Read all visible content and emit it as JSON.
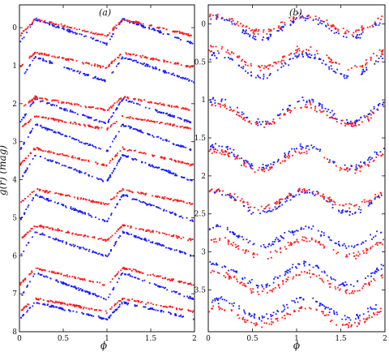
{
  "chart_data": [
    {
      "type": "scatter",
      "panel_label": "(a)",
      "xlabel": "ϕ",
      "ylabel": "g(r) (mag)",
      "xlim": [
        0,
        2
      ],
      "ylim": [
        8,
        -0.6
      ],
      "y_inverted": true,
      "x_ticks": [
        "0",
        "0.5",
        "1",
        "1.5",
        "2"
      ],
      "y_ticks": [
        "0",
        "1",
        "2",
        "3",
        "4",
        "5",
        "6",
        "7",
        "8"
      ],
      "colors": {
        "g": "#1a1aff",
        "r": "#ff1a1a"
      },
      "curve_shape": "sawtooth",
      "stars": [
        {
          "g_mean": 0.1,
          "g_amp": 0.65,
          "r_mean": 0.0,
          "r_amp": 0.45
        },
        {
          "g_mean": 1.1,
          "g_amp": 0.65,
          "r_mean": 0.85,
          "r_amp": 0.4
        },
        {
          "g_mean": 2.2,
          "g_amp": 0.65,
          "r_mean": 2.0,
          "r_amp": 0.35
        },
        {
          "g_mean": 2.9,
          "g_amp": 0.7,
          "r_mean": 2.5,
          "r_amp": 0.35
        },
        {
          "g_mean": 3.7,
          "g_amp": 0.7,
          "r_mean": 3.4,
          "r_amp": 0.45
        },
        {
          "g_mean": 4.75,
          "g_amp": 0.7,
          "r_mean": 4.45,
          "r_amp": 0.4
        },
        {
          "g_mean": 5.7,
          "g_amp": 0.65,
          "r_mean": 5.4,
          "r_amp": 0.4
        },
        {
          "g_mean": 6.8,
          "g_amp": 0.7,
          "r_mean": 6.55,
          "r_amp": 0.45
        },
        {
          "g_mean": 7.45,
          "g_amp": 0.45,
          "r_mean": 7.3,
          "r_amp": 0.35
        }
      ]
    },
    {
      "type": "scatter",
      "panel_label": "(b)",
      "xlabel": "ϕ",
      "xlim": [
        0,
        2
      ],
      "ylim": [
        4.05,
        -0.25
      ],
      "y_inverted": true,
      "x_ticks": [
        "0",
        "0.5",
        "1",
        "1.5",
        "2"
      ],
      "y_ticks": [
        "0",
        "0.5",
        "1",
        "1.5",
        "2",
        "2.5",
        "3",
        "3.5"
      ],
      "colors": {
        "g": "#1a1aff",
        "r": "#ff1a1a"
      },
      "curve_shape": "sinusoidal",
      "stars": [
        {
          "g_mean": 0.05,
          "g_amp": 0.28,
          "r_mean": 0.0,
          "r_amp": 0.22
        },
        {
          "g_mean": 0.55,
          "g_amp": 0.3,
          "r_mean": 0.45,
          "r_amp": 0.25
        },
        {
          "g_mean": 1.15,
          "g_amp": 0.3,
          "r_mean": 1.2,
          "r_amp": 0.25
        },
        {
          "g_mean": 1.75,
          "g_amp": 0.28,
          "r_mean": 1.8,
          "r_amp": 0.25
        },
        {
          "g_mean": 2.35,
          "g_amp": 0.28,
          "r_mean": 2.3,
          "r_amp": 0.22
        },
        {
          "g_mean": 2.8,
          "g_amp": 0.25,
          "r_mean": 2.95,
          "r_amp": 0.22
        },
        {
          "g_mean": 3.3,
          "g_amp": 0.28,
          "r_mean": 3.4,
          "r_amp": 0.25
        },
        {
          "g_mean": 3.75,
          "g_amp": 0.25,
          "r_mean": 3.85,
          "r_amp": 0.22
        }
      ]
    }
  ]
}
